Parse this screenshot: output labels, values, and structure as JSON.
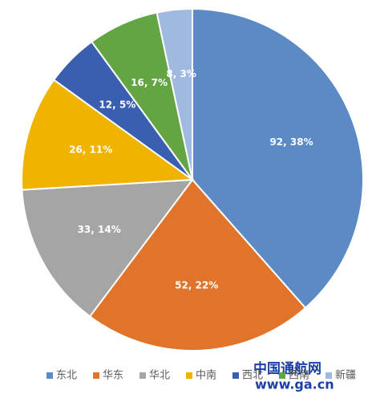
{
  "chart_data": {
    "type": "pie",
    "categories": [
      "东北",
      "华东",
      "华北",
      "中南",
      "西北",
      "西南",
      "新疆"
    ],
    "values": [
      92,
      52,
      33,
      26,
      12,
      16,
      8
    ],
    "value_labels": [
      "92, 38%",
      "52, 22%",
      "33, 14%",
      "26, 11%",
      "12, 5%",
      "16, 7%",
      "8, 3%"
    ],
    "colors": [
      "#5b8ac5",
      "#e0742a",
      "#a5a5a5",
      "#f0b400",
      "#3a5fb0",
      "#63a542",
      "#9fb9e0"
    ],
    "legend": "bottom"
  },
  "watermark": {
    "name": "中国通航网",
    "url": "www.ga.cn"
  }
}
